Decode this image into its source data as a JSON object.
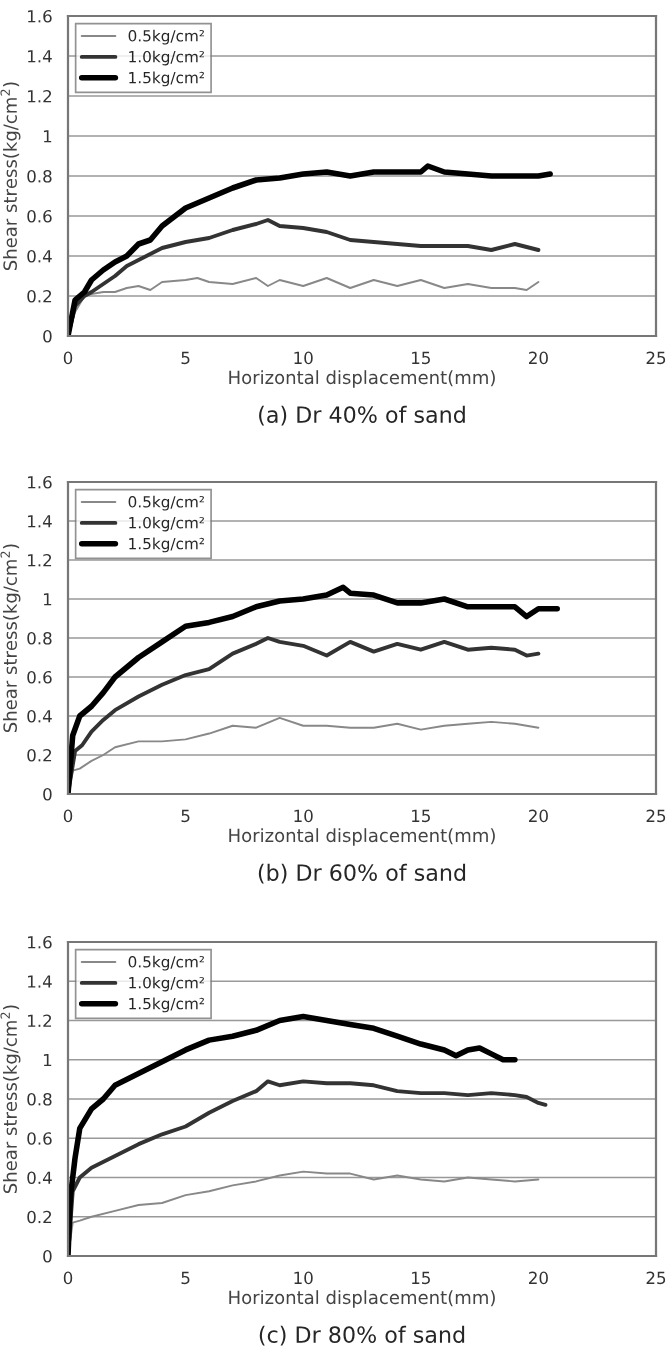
{
  "chart_data": [
    {
      "type": "line",
      "title": "(a) Dr 40% of sand",
      "xlabel": "Horizontal displacement(mm)",
      "ylabel": "Shear stress(kg/cm$^{2}$)",
      "xlim": [
        0,
        25
      ],
      "xticks": [
        0,
        5,
        10,
        15,
        20,
        25
      ],
      "ylim": [
        0,
        1.6
      ],
      "yticks": [
        0,
        0.2,
        0.4,
        0.6,
        0.8,
        1,
        1.2,
        1.4,
        1.6
      ],
      "grid": "y",
      "legend": "top left",
      "marker": "none",
      "line_style": "solid",
      "series": [
        {
          "name": "0.5kg/cm²",
          "color": "#888888",
          "x": [
            0,
            0.3,
            0.7,
            1,
            1.5,
            2,
            2.5,
            3,
            3.5,
            4,
            5,
            5.5,
            6,
            7,
            8,
            8.5,
            9,
            10,
            11,
            12,
            13,
            14,
            15,
            16,
            17,
            18,
            19,
            19.5,
            20
          ],
          "values": [
            0,
            0.12,
            0.2,
            0.21,
            0.22,
            0.22,
            0.24,
            0.25,
            0.23,
            0.27,
            0.28,
            0.29,
            0.27,
            0.26,
            0.29,
            0.25,
            0.28,
            0.25,
            0.29,
            0.24,
            0.28,
            0.25,
            0.28,
            0.24,
            0.26,
            0.24,
            0.24,
            0.23,
            0.27
          ]
        },
        {
          "name": "1.0kg/cm²",
          "color": "#333333",
          "x": [
            0,
            0.3,
            0.7,
            1,
            1.5,
            2,
            2.5,
            3,
            4,
            5,
            6,
            7,
            8,
            8.5,
            9,
            10,
            11,
            12,
            13,
            14,
            15,
            16,
            17,
            18,
            19,
            20
          ],
          "values": [
            0,
            0.15,
            0.2,
            0.22,
            0.26,
            0.3,
            0.35,
            0.38,
            0.44,
            0.47,
            0.49,
            0.53,
            0.56,
            0.58,
            0.55,
            0.54,
            0.52,
            0.48,
            0.47,
            0.46,
            0.45,
            0.45,
            0.45,
            0.43,
            0.46,
            0.43
          ]
        },
        {
          "name": "1.5kg/cm²",
          "color": "#000000",
          "x": [
            0,
            0.3,
            0.7,
            1,
            1.5,
            2,
            2.5,
            3,
            3.5,
            4,
            5,
            6,
            7,
            8,
            9,
            10,
            11,
            12,
            13,
            14,
            15,
            15.3,
            16,
            17,
            18,
            19,
            20,
            20.5
          ],
          "values": [
            0,
            0.18,
            0.22,
            0.28,
            0.33,
            0.37,
            0.4,
            0.46,
            0.48,
            0.55,
            0.64,
            0.69,
            0.74,
            0.78,
            0.79,
            0.81,
            0.82,
            0.8,
            0.82,
            0.82,
            0.82,
            0.85,
            0.82,
            0.81,
            0.8,
            0.8,
            0.8,
            0.81
          ]
        }
      ]
    },
    {
      "type": "line",
      "title": "(b) Dr 60% of sand",
      "xlabel": "Horizontal displacement(mm)",
      "ylabel": "Shear stress(kg/cm$^{2}$)",
      "xlim": [
        0,
        25
      ],
      "xticks": [
        0,
        5,
        10,
        15,
        20,
        25
      ],
      "ylim": [
        0,
        1.6
      ],
      "yticks": [
        0,
        0.2,
        0.4,
        0.6,
        0.8,
        1,
        1.2,
        1.4,
        1.6
      ],
      "grid": "y",
      "legend": "top left",
      "marker": "none",
      "line_style": "solid",
      "series": [
        {
          "name": "0.5kg/cm²",
          "color": "#888888",
          "x": [
            0,
            0.2,
            0.5,
            1,
            1.5,
            2,
            3,
            4,
            5,
            6,
            7,
            8,
            9,
            10,
            11,
            12,
            13,
            14,
            15,
            16,
            17,
            18,
            19,
            20
          ],
          "values": [
            0,
            0.12,
            0.13,
            0.17,
            0.2,
            0.24,
            0.27,
            0.27,
            0.28,
            0.31,
            0.35,
            0.34,
            0.39,
            0.35,
            0.35,
            0.34,
            0.34,
            0.36,
            0.33,
            0.35,
            0.36,
            0.37,
            0.36,
            0.34
          ]
        },
        {
          "name": "1.0kg/cm²",
          "color": "#333333",
          "x": [
            0,
            0.3,
            0.6,
            1,
            1.5,
            2,
            3,
            4,
            5,
            6,
            7,
            8,
            8.5,
            9,
            10,
            11,
            12,
            13,
            14,
            15,
            16,
            17,
            18,
            19,
            19.5,
            20
          ],
          "values": [
            0,
            0.22,
            0.25,
            0.32,
            0.38,
            0.43,
            0.5,
            0.56,
            0.61,
            0.64,
            0.72,
            0.77,
            0.8,
            0.78,
            0.76,
            0.71,
            0.78,
            0.73,
            0.77,
            0.74,
            0.78,
            0.74,
            0.75,
            0.74,
            0.71,
            0.72
          ]
        },
        {
          "name": "1.5kg/cm²",
          "color": "#000000",
          "x": [
            0,
            0.2,
            0.5,
            1,
            1.5,
            2,
            3,
            4,
            5,
            6,
            7,
            8,
            9,
            10,
            11,
            11.7,
            12,
            13,
            14,
            15,
            16,
            17,
            18,
            19,
            19.5,
            20,
            20.8
          ],
          "values": [
            0,
            0.3,
            0.4,
            0.45,
            0.52,
            0.6,
            0.7,
            0.78,
            0.86,
            0.88,
            0.91,
            0.96,
            0.99,
            1.0,
            1.02,
            1.06,
            1.03,
            1.02,
            0.98,
            0.98,
            1.0,
            0.96,
            0.96,
            0.96,
            0.91,
            0.95,
            0.95
          ]
        }
      ]
    },
    {
      "type": "line",
      "title": "(c) Dr 80% of sand",
      "xlabel": "Horizontal displacement(mm)",
      "ylabel": "Shear stress(kg/cm$^{2}$)",
      "xlim": [
        0,
        25
      ],
      "xticks": [
        0,
        5,
        10,
        15,
        20,
        25
      ],
      "ylim": [
        0,
        1.6
      ],
      "yticks": [
        0,
        0.2,
        0.4,
        0.6,
        0.8,
        1,
        1.2,
        1.4,
        1.6
      ],
      "grid": "y",
      "legend": "top left",
      "marker": "none",
      "line_style": "solid",
      "series": [
        {
          "name": "0.5kg/cm²",
          "color": "#888888",
          "x": [
            0,
            0.2,
            0.5,
            1,
            2,
            3,
            4,
            5,
            6,
            7,
            8,
            9,
            10,
            11,
            12,
            13,
            14,
            15,
            16,
            17,
            18,
            19,
            20
          ],
          "values": [
            0,
            0.17,
            0.18,
            0.2,
            0.23,
            0.26,
            0.27,
            0.31,
            0.33,
            0.36,
            0.38,
            0.41,
            0.43,
            0.42,
            0.42,
            0.39,
            0.41,
            0.39,
            0.38,
            0.4,
            0.39,
            0.38,
            0.39
          ]
        },
        {
          "name": "1.0kg/cm²",
          "color": "#333333",
          "x": [
            0,
            0.2,
            0.5,
            1,
            2,
            3,
            4,
            5,
            6,
            7,
            8,
            8.5,
            9,
            10,
            11,
            12,
            13,
            14,
            15,
            16,
            17,
            18,
            19,
            19.5,
            20,
            20.3
          ],
          "values": [
            0,
            0.33,
            0.4,
            0.45,
            0.51,
            0.57,
            0.62,
            0.66,
            0.73,
            0.79,
            0.84,
            0.89,
            0.87,
            0.89,
            0.88,
            0.88,
            0.87,
            0.84,
            0.83,
            0.83,
            0.82,
            0.83,
            0.82,
            0.81,
            0.78,
            0.77
          ]
        },
        {
          "name": "1.5kg/cm²",
          "color": "#000000",
          "x": [
            0,
            0.1,
            0.3,
            0.5,
            1,
            1.5,
            2,
            3,
            4,
            5,
            6,
            7,
            8,
            9,
            10,
            11,
            12,
            13,
            14,
            15,
            16,
            16.5,
            17,
            17.5,
            18,
            18.5,
            19
          ],
          "values": [
            0,
            0.3,
            0.5,
            0.65,
            0.75,
            0.8,
            0.87,
            0.93,
            0.99,
            1.05,
            1.1,
            1.12,
            1.15,
            1.2,
            1.22,
            1.2,
            1.18,
            1.16,
            1.12,
            1.08,
            1.05,
            1.02,
            1.05,
            1.06,
            1.03,
            1,
            1
          ]
        }
      ]
    }
  ]
}
